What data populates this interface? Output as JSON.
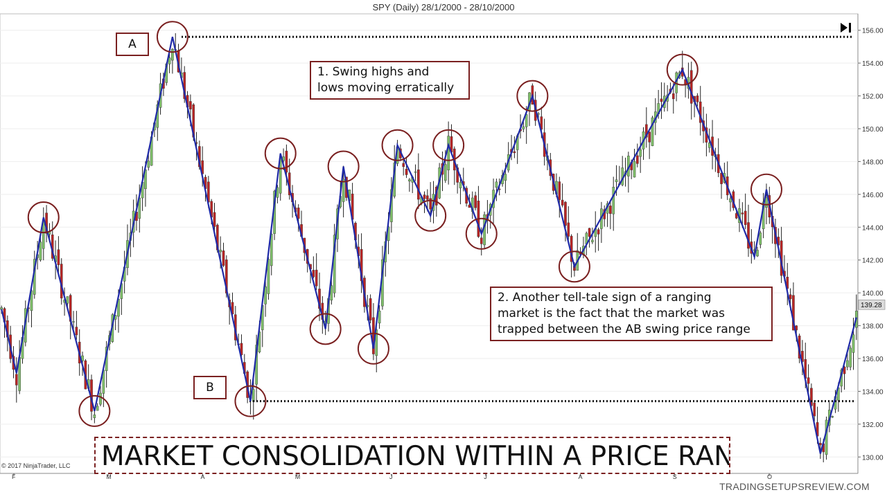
{
  "header": {
    "title": "SPY (Daily)  28/1/2000 - 28/10/2000"
  },
  "labels": {
    "a": "A",
    "b": "B"
  },
  "notes": {
    "note1": "1. Swing highs and\nlows moving erratically",
    "note2": "2. Another tell-tale sign of a ranging\nmarket is the fact that the market was\ntrapped between the AB swing price range"
  },
  "banner": "MARKET CONSOLIDATION WITHIN A PRICE RANGE",
  "footer": {
    "copyright": "© 2017 NinjaTrader, LLC",
    "watermark": "TRADINGSETUPSREVIEW.COM"
  },
  "toolbar": {
    "go_to_end_icon": "skip-to-end-icon"
  },
  "colors": {
    "up_candle": "#7fbf6a",
    "down_candle": "#b82525",
    "wick": "#222222",
    "swing_line": "#1f2aa8",
    "circle": "#7a2020",
    "annotation_border": "#7a2020",
    "level_line": "#111111",
    "last_price_tag": "#dcdcdc"
  },
  "chart_data": {
    "type": "candlestick",
    "title": "SPY (Daily)  28/1/2000 - 28/10/2000",
    "ylim": [
      129,
      157
    ],
    "y_ticks": [
      "130.00",
      "132.00",
      "134.00",
      "136.00",
      "138.00",
      "140.00",
      "142.00",
      "144.00",
      "146.00",
      "148.00",
      "150.00",
      "152.00",
      "154.00",
      "156.00"
    ],
    "x_month_labels": [
      "F",
      "M",
      "A",
      "M",
      "J",
      "J",
      "A",
      "S",
      "O"
    ],
    "last_price": "139.28",
    "levels": [
      {
        "label": "A",
        "price": 155.6
      },
      {
        "label": "B",
        "price": 133.4
      }
    ],
    "swing_points": [
      {
        "bar": 0,
        "price": 139.0,
        "circled": false
      },
      {
        "bar": 5,
        "price": 135.1,
        "circled": false
      },
      {
        "bar": 14,
        "price": 144.6,
        "circled": true
      },
      {
        "bar": 31,
        "price": 132.8,
        "circled": true
      },
      {
        "bar": 57,
        "price": 155.6,
        "circled": true
      },
      {
        "bar": 83,
        "price": 133.4,
        "circled": true
      },
      {
        "bar": 93,
        "price": 148.5,
        "circled": true
      },
      {
        "bar": 108,
        "price": 137.8,
        "circled": true
      },
      {
        "bar": 114,
        "price": 147.7,
        "circled": true
      },
      {
        "bar": 124,
        "price": 136.6,
        "circled": true
      },
      {
        "bar": 132,
        "price": 149.0,
        "circled": true
      },
      {
        "bar": 143,
        "price": 144.7,
        "circled": true
      },
      {
        "bar": 149,
        "price": 149.0,
        "circled": true
      },
      {
        "bar": 160,
        "price": 143.6,
        "circled": true
      },
      {
        "bar": 177,
        "price": 152.0,
        "circled": true
      },
      {
        "bar": 191,
        "price": 141.6,
        "circled": true
      },
      {
        "bar": 227,
        "price": 153.6,
        "circled": true
      },
      {
        "bar": 251,
        "price": 142.2,
        "circled": false
      },
      {
        "bar": 255,
        "price": 146.3,
        "circled": true
      },
      {
        "bar": 273,
        "price": 130.2,
        "circled": false
      },
      {
        "bar": 285,
        "price": 138.5,
        "circled": false
      }
    ],
    "bar_count": 286,
    "series": []
  }
}
